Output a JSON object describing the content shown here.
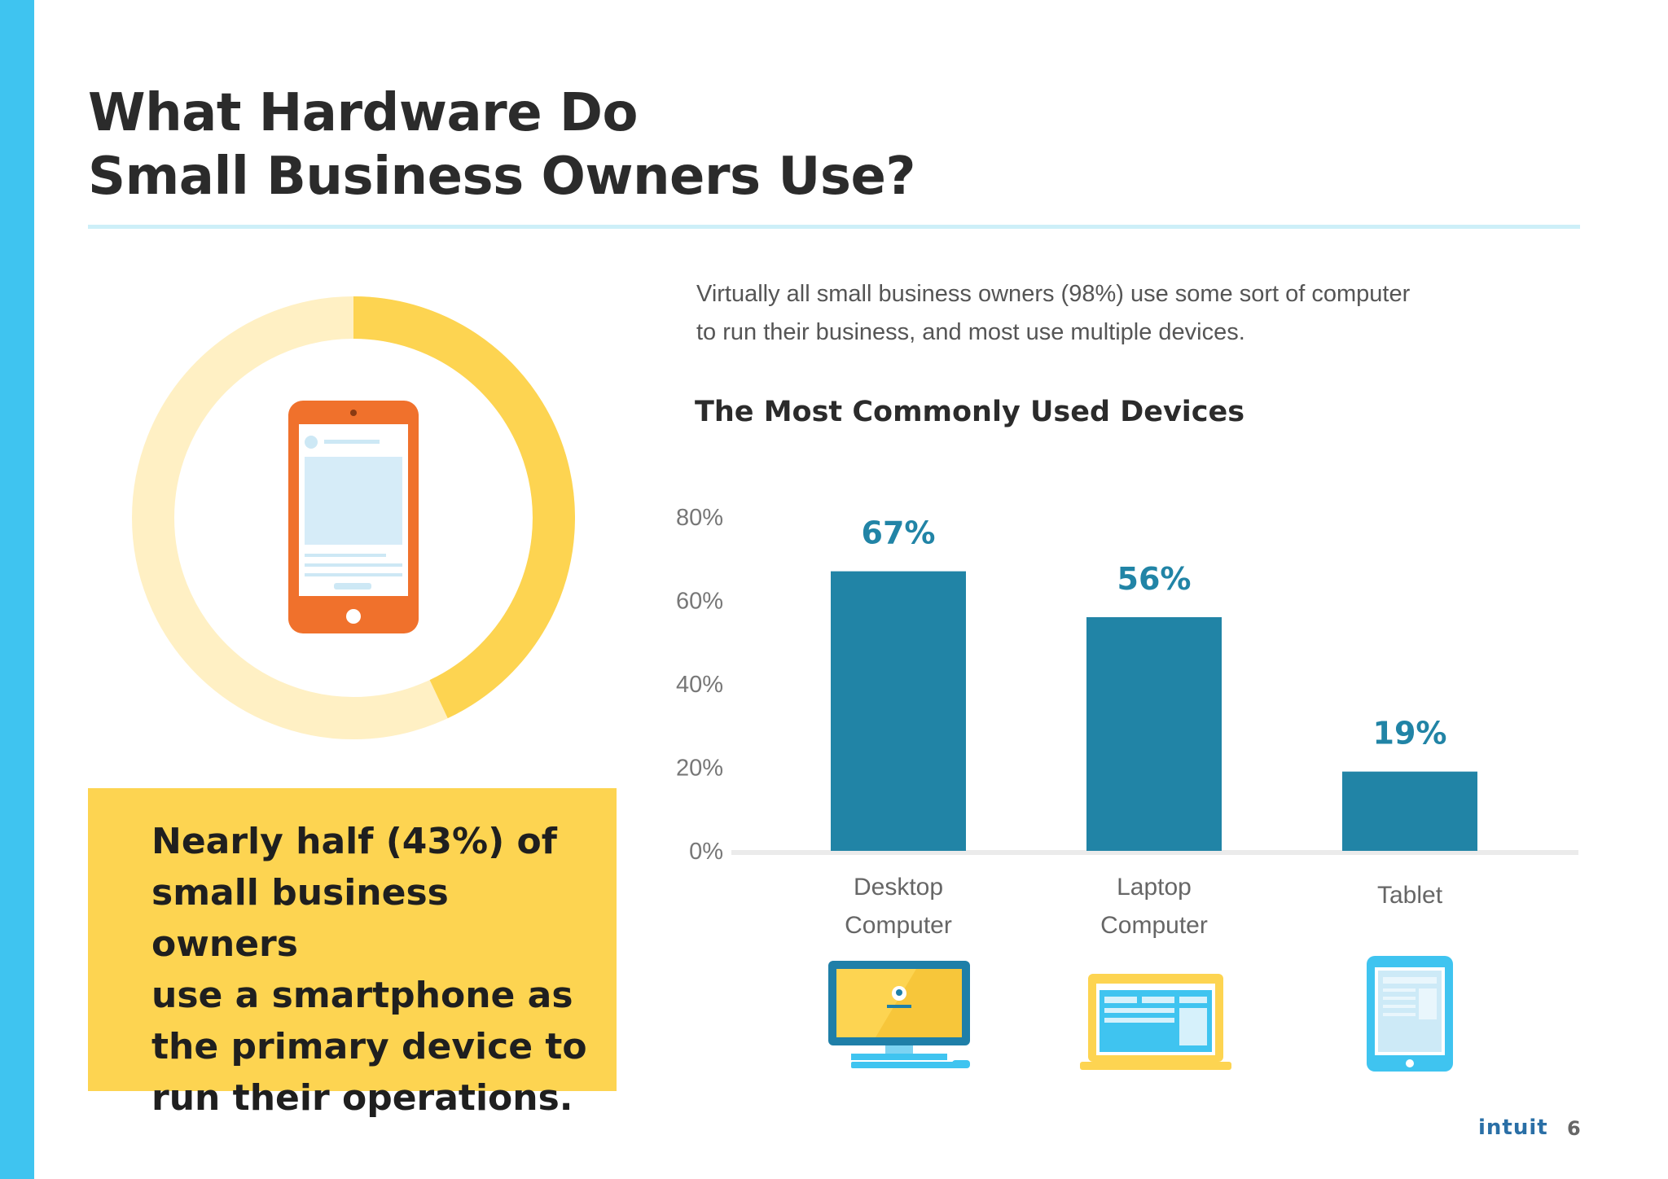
{
  "page": {
    "title_line1": "What Hardware Do",
    "title_line2": "Small Business Owners Use?",
    "intro_line1": "Virtually all small business owners (98%) use some sort of computer",
    "intro_line2": "to run their business, and most use multiple devices.",
    "callout_line1": "Nearly half (43%) of",
    "callout_line2": "small business owners",
    "callout_line3": "use a smartphone as",
    "callout_line4": "the primary device to",
    "callout_line5": "run their operations.",
    "brand": "intuit",
    "page_number": "6"
  },
  "donut": {
    "value_percent": 43,
    "colors": {
      "filled": "#fdd451",
      "track": "#fff0c4"
    }
  },
  "icons": {
    "smartphone": "smartphone-icon",
    "desktop": "desktop-computer-icon",
    "laptop": "laptop-computer-icon",
    "tablet": "tablet-icon"
  },
  "chart_data": {
    "type": "bar",
    "title": "The Most Commonly Used Devices",
    "categories": [
      "Desktop Computer",
      "Laptop Computer",
      "Tablet"
    ],
    "category_lines": [
      [
        "Desktop",
        "Computer"
      ],
      [
        "Laptop",
        "Computer"
      ],
      [
        "Tablet"
      ]
    ],
    "values": [
      67,
      56,
      19
    ],
    "data_labels": [
      "67%",
      "56%",
      "19%"
    ],
    "yticks": [
      "0%",
      "20%",
      "40%",
      "60%",
      "80%"
    ],
    "ytick_values": [
      0,
      20,
      40,
      60,
      80
    ],
    "ylim": [
      0,
      80
    ],
    "xlabel": "",
    "ylabel": "",
    "grid": false,
    "colors": {
      "bar": "#2184a6",
      "label": "#2184a6",
      "axis": "#ebebeb",
      "tick": "#777777"
    }
  }
}
